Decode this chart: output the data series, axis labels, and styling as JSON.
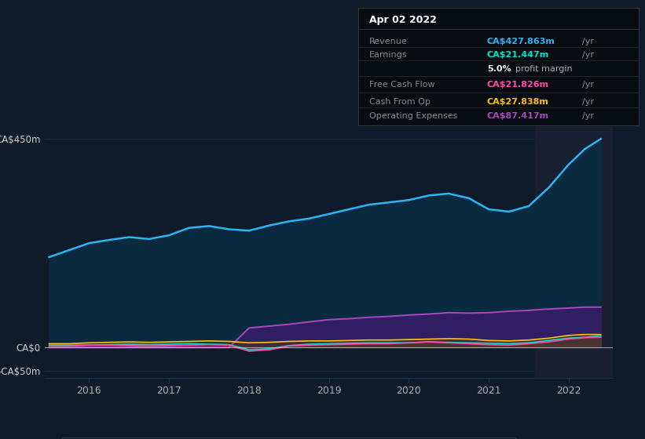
{
  "bg_color": "#0d1b2a",
  "plot_bg_color": "#0d1b2a",
  "chart_bg_color": "#0d1b2a",
  "highlight_color": "#152030",
  "grid_color": "#1e3050",
  "revenue_fill_color": "#0a3a5a",
  "ylabel_ca450": "CA$450m",
  "ylabel_ca0": "CA$0",
  "ylabel_cam50": "-CA$50m",
  "x_ticks": [
    2016,
    2017,
    2018,
    2019,
    2020,
    2021,
    2022
  ],
  "highlight_start": 2021.58,
  "highlight_end": 2022.55,
  "tooltip": {
    "date": "Apr 02 2022",
    "bg": "#0a0a0a",
    "border": "#333333",
    "rows": [
      {
        "label": "Revenue",
        "value": "CA$427.863m",
        "unit": "/yr",
        "color": "#29b6f6"
      },
      {
        "label": "Earnings",
        "value": "CA$21.447m",
        "unit": "/yr",
        "color": "#00e5cc"
      },
      {
        "label": "",
        "value": "5.0%",
        "unit": " profit margin",
        "color": "#ffffff",
        "bold_part": true
      },
      {
        "label": "Free Cash Flow",
        "value": "CA$21.826m",
        "unit": "/yr",
        "color": "#ff4da6"
      },
      {
        "label": "Cash From Op",
        "value": "CA$27.838m",
        "unit": "/yr",
        "color": "#ffc107"
      },
      {
        "label": "Operating Expenses",
        "value": "CA$87.417m",
        "unit": "/yr",
        "color": "#ab47bc"
      }
    ]
  },
  "legend": [
    {
      "label": "Revenue",
      "color": "#29b6f6"
    },
    {
      "label": "Earnings",
      "color": "#00e5cc"
    },
    {
      "label": "Free Cash Flow",
      "color": "#ff4da6"
    },
    {
      "label": "Cash From Op",
      "color": "#ffc107"
    },
    {
      "label": "Operating Expenses",
      "color": "#ab47bc"
    }
  ],
  "years": [
    2015.5,
    2015.75,
    2016.0,
    2016.25,
    2016.5,
    2016.75,
    2017.0,
    2017.25,
    2017.5,
    2017.75,
    2018.0,
    2018.25,
    2018.5,
    2018.75,
    2019.0,
    2019.25,
    2019.5,
    2019.75,
    2020.0,
    2020.25,
    2020.5,
    2020.75,
    2021.0,
    2021.25,
    2021.5,
    2021.75,
    2022.0,
    2022.2,
    2022.4
  ],
  "revenue": [
    195,
    210,
    225,
    232,
    238,
    234,
    242,
    258,
    262,
    255,
    252,
    263,
    272,
    278,
    288,
    298,
    308,
    313,
    318,
    328,
    332,
    322,
    298,
    293,
    305,
    345,
    395,
    428,
    450
  ],
  "earnings": [
    5,
    5,
    5,
    6,
    7,
    6,
    7,
    8,
    7,
    6,
    -5,
    -3,
    4,
    7,
    8,
    9,
    10,
    10,
    10,
    12,
    11,
    10,
    9,
    8,
    10,
    15,
    20,
    22,
    25
  ],
  "free_cash": [
    3,
    3,
    5,
    5,
    4,
    3,
    4,
    5,
    6,
    5,
    -8,
    -5,
    3,
    5,
    6,
    7,
    8,
    8,
    10,
    12,
    10,
    8,
    6,
    5,
    8,
    12,
    18,
    21,
    22
  ],
  "cash_from_op": [
    8,
    8,
    10,
    11,
    12,
    11,
    12,
    13,
    14,
    13,
    10,
    11,
    13,
    14,
    14,
    15,
    16,
    16,
    17,
    18,
    19,
    18,
    15,
    14,
    16,
    20,
    26,
    28,
    28
  ],
  "op_expenses": [
    0,
    0,
    0,
    0,
    0,
    0,
    0,
    0,
    0,
    0,
    42,
    46,
    50,
    55,
    60,
    62,
    65,
    67,
    70,
    72,
    75,
    74,
    75,
    78,
    80,
    83,
    85,
    87,
    87
  ],
  "ylim": [
    -65,
    475
  ],
  "xlim": [
    2015.45,
    2022.55
  ]
}
